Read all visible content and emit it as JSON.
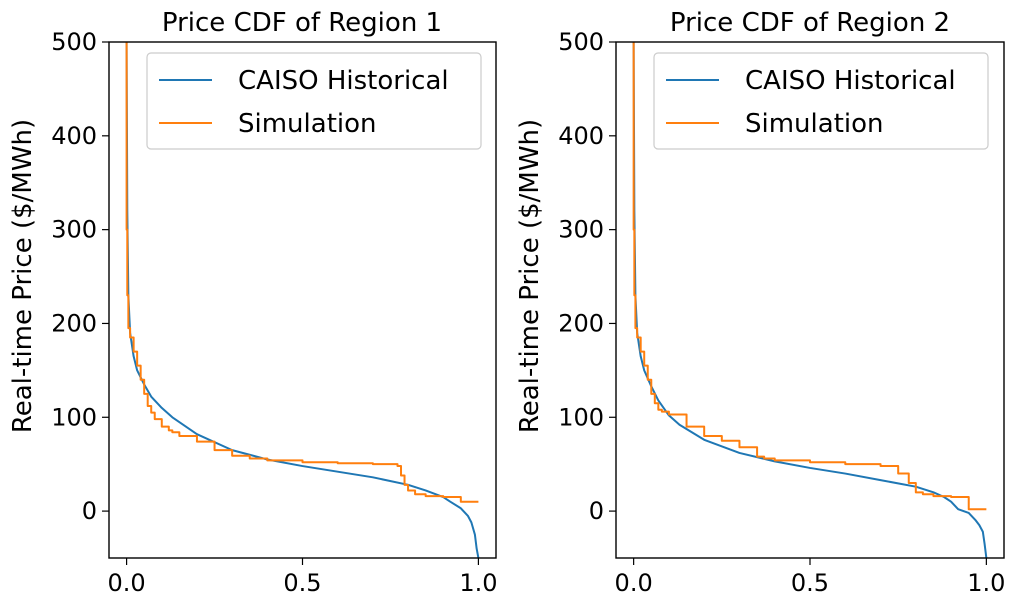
{
  "chart_data": [
    {
      "type": "line",
      "title": "Price CDF of Region 1",
      "xlabel": "",
      "ylabel": "Real-time Price ($/MWh)",
      "xlim": [
        -0.05,
        1.05
      ],
      "ylim": [
        -50,
        500
      ],
      "xticks": [
        0.0,
        0.5,
        1.0
      ],
      "xtick_labels": [
        "0.0",
        "0.5",
        "1.0"
      ],
      "yticks": [
        0,
        100,
        200,
        300,
        400,
        500
      ],
      "ytick_labels": [
        "0",
        "100",
        "200",
        "300",
        "400",
        "500"
      ],
      "legend_position": "top-right",
      "series": [
        {
          "name": "CAISO Historical",
          "color": "#1f77b4",
          "step": false,
          "x": [
            0.0,
            0.002,
            0.005,
            0.01,
            0.02,
            0.03,
            0.05,
            0.07,
            0.1,
            0.13,
            0.2,
            0.3,
            0.4,
            0.5,
            0.6,
            0.7,
            0.8,
            0.85,
            0.9,
            0.92,
            0.95,
            0.97,
            0.98,
            0.99,
            0.995,
            1.0
          ],
          "y": [
            500,
            320,
            230,
            190,
            165,
            150,
            135,
            122,
            110,
            100,
            82,
            65,
            55,
            48,
            42,
            36,
            28,
            22,
            15,
            10,
            3,
            -5,
            -12,
            -25,
            -40,
            -50
          ]
        },
        {
          "name": "Simulation",
          "color": "#ff7f0e",
          "step": true,
          "x": [
            0.0,
            0.002,
            0.005,
            0.01,
            0.02,
            0.03,
            0.04,
            0.05,
            0.06,
            0.07,
            0.08,
            0.1,
            0.12,
            0.13,
            0.15,
            0.2,
            0.25,
            0.3,
            0.35,
            0.4,
            0.5,
            0.6,
            0.7,
            0.77,
            0.78,
            0.79,
            0.8,
            0.82,
            0.85,
            0.9,
            0.95,
            1.0
          ],
          "y": [
            500,
            300,
            230,
            195,
            185,
            170,
            155,
            140,
            125,
            112,
            105,
            98,
            90,
            86,
            84,
            80,
            74,
            65,
            59,
            56,
            54,
            52,
            51,
            50,
            48,
            38,
            28,
            22,
            18,
            16,
            15,
            10
          ]
        }
      ]
    },
    {
      "type": "line",
      "title": "Price CDF of Region 2",
      "xlabel": "",
      "ylabel": "Real-time Price ($/MWh)",
      "xlim": [
        -0.05,
        1.05
      ],
      "ylim": [
        -50,
        500
      ],
      "xticks": [
        0.0,
        0.5,
        1.0
      ],
      "xtick_labels": [
        "0.0",
        "0.5",
        "1.0"
      ],
      "yticks": [
        0,
        100,
        200,
        300,
        400,
        500
      ],
      "ytick_labels": [
        "0",
        "100",
        "200",
        "300",
        "400",
        "500"
      ],
      "legend_position": "top-right",
      "series": [
        {
          "name": "CAISO Historical",
          "color": "#1f77b4",
          "step": false,
          "x": [
            0.0,
            0.002,
            0.005,
            0.01,
            0.02,
            0.03,
            0.05,
            0.07,
            0.1,
            0.13,
            0.2,
            0.3,
            0.4,
            0.5,
            0.6,
            0.7,
            0.8,
            0.85,
            0.88,
            0.9,
            0.92,
            0.95,
            0.97,
            0.98,
            0.99,
            0.995,
            1.0
          ],
          "y": [
            500,
            320,
            230,
            190,
            165,
            150,
            133,
            118,
            102,
            92,
            76,
            62,
            53,
            46,
            40,
            33,
            26,
            20,
            15,
            10,
            2,
            -2,
            -10,
            -15,
            -22,
            -35,
            -50
          ]
        },
        {
          "name": "Simulation",
          "color": "#ff7f0e",
          "step": true,
          "x": [
            0.0,
            0.002,
            0.005,
            0.01,
            0.02,
            0.03,
            0.04,
            0.05,
            0.06,
            0.07,
            0.08,
            0.1,
            0.15,
            0.2,
            0.25,
            0.3,
            0.35,
            0.37,
            0.4,
            0.5,
            0.6,
            0.7,
            0.75,
            0.78,
            0.8,
            0.82,
            0.85,
            0.9,
            0.95,
            1.0
          ],
          "y": [
            500,
            300,
            230,
            195,
            185,
            170,
            155,
            140,
            125,
            115,
            108,
            106,
            103,
            90,
            80,
            75,
            68,
            58,
            56,
            54,
            52,
            50,
            48,
            40,
            30,
            20,
            18,
            16,
            15,
            2
          ]
        }
      ]
    }
  ]
}
